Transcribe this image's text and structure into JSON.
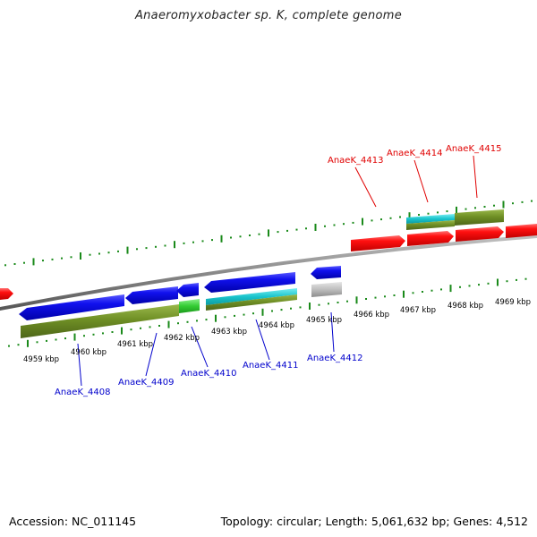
{
  "title": "Anaeromyxobacter sp. K, complete genome",
  "footer": {
    "accession": "Accession: NC_011145",
    "summary": "Topology: circular; Length: 5,061,632 bp; Genes: 4,512"
  },
  "colors": {
    "forward_gene": "#ee0000",
    "reverse_gene": "#0000dd",
    "olive_feature": "#6f8f25",
    "cyan_feature": "#19c4cc",
    "green_feature": "#33cc33",
    "grey_feature": "#b9b9b9",
    "tick": "#1a8a1a",
    "backbone": "#8a8a8a"
  },
  "ticks": {
    "lower": [
      "4959 kbp",
      "4960 kbp",
      "4961 kbp",
      "4962 kbp",
      "4963 kbp",
      "4964 kbp",
      "4965 kbp",
      "4966 kbp",
      "4967 kbp",
      "4968 kbp",
      "4969 kbp"
    ]
  },
  "gene_labels": {
    "forward": [
      "AnaeK_4413",
      "AnaeK_4414",
      "AnaeK_4415"
    ],
    "reverse": [
      "AnaeK_4408",
      "AnaeK_4409",
      "AnaeK_4410",
      "AnaeK_4411",
      "AnaeK_4412"
    ]
  }
}
